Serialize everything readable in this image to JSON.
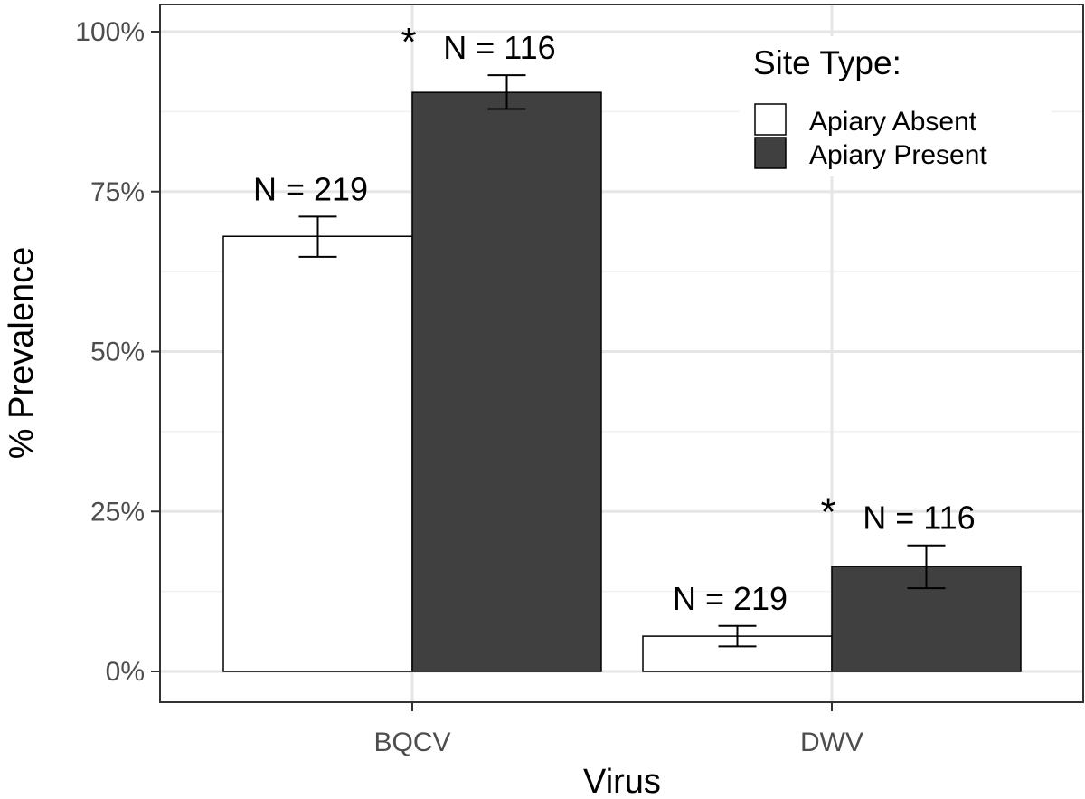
{
  "chart_data": {
    "type": "bar",
    "xlabel": "Virus",
    "ylabel": "% Prevalence",
    "categories": [
      "BQCV",
      "DWV"
    ],
    "ylim": [
      0,
      100
    ],
    "yticks": [
      0,
      25,
      50,
      75,
      100
    ],
    "ytick_labels": [
      "0%",
      "25%",
      "50%",
      "75%",
      "100%"
    ],
    "grid": true,
    "legend": {
      "title": "Site Type:",
      "position": "top-right"
    },
    "series": [
      {
        "name": "Apiary Absent",
        "color": "#ffffff",
        "values": [
          68,
          5.5
        ],
        "error_low": [
          64.8,
          3.9
        ],
        "error_high": [
          71.1,
          7.1
        ],
        "n_labels": [
          "N = 219",
          "N = 219"
        ],
        "significance": [
          "",
          ""
        ]
      },
      {
        "name": "Apiary Present",
        "color": "#404040",
        "values": [
          90.5,
          16.4
        ],
        "error_low": [
          87.9,
          13.0
        ],
        "error_high": [
          93.2,
          19.7
        ],
        "n_labels": [
          "N = 116",
          "N = 116"
        ],
        "significance": [
          "*",
          "*"
        ]
      }
    ]
  }
}
